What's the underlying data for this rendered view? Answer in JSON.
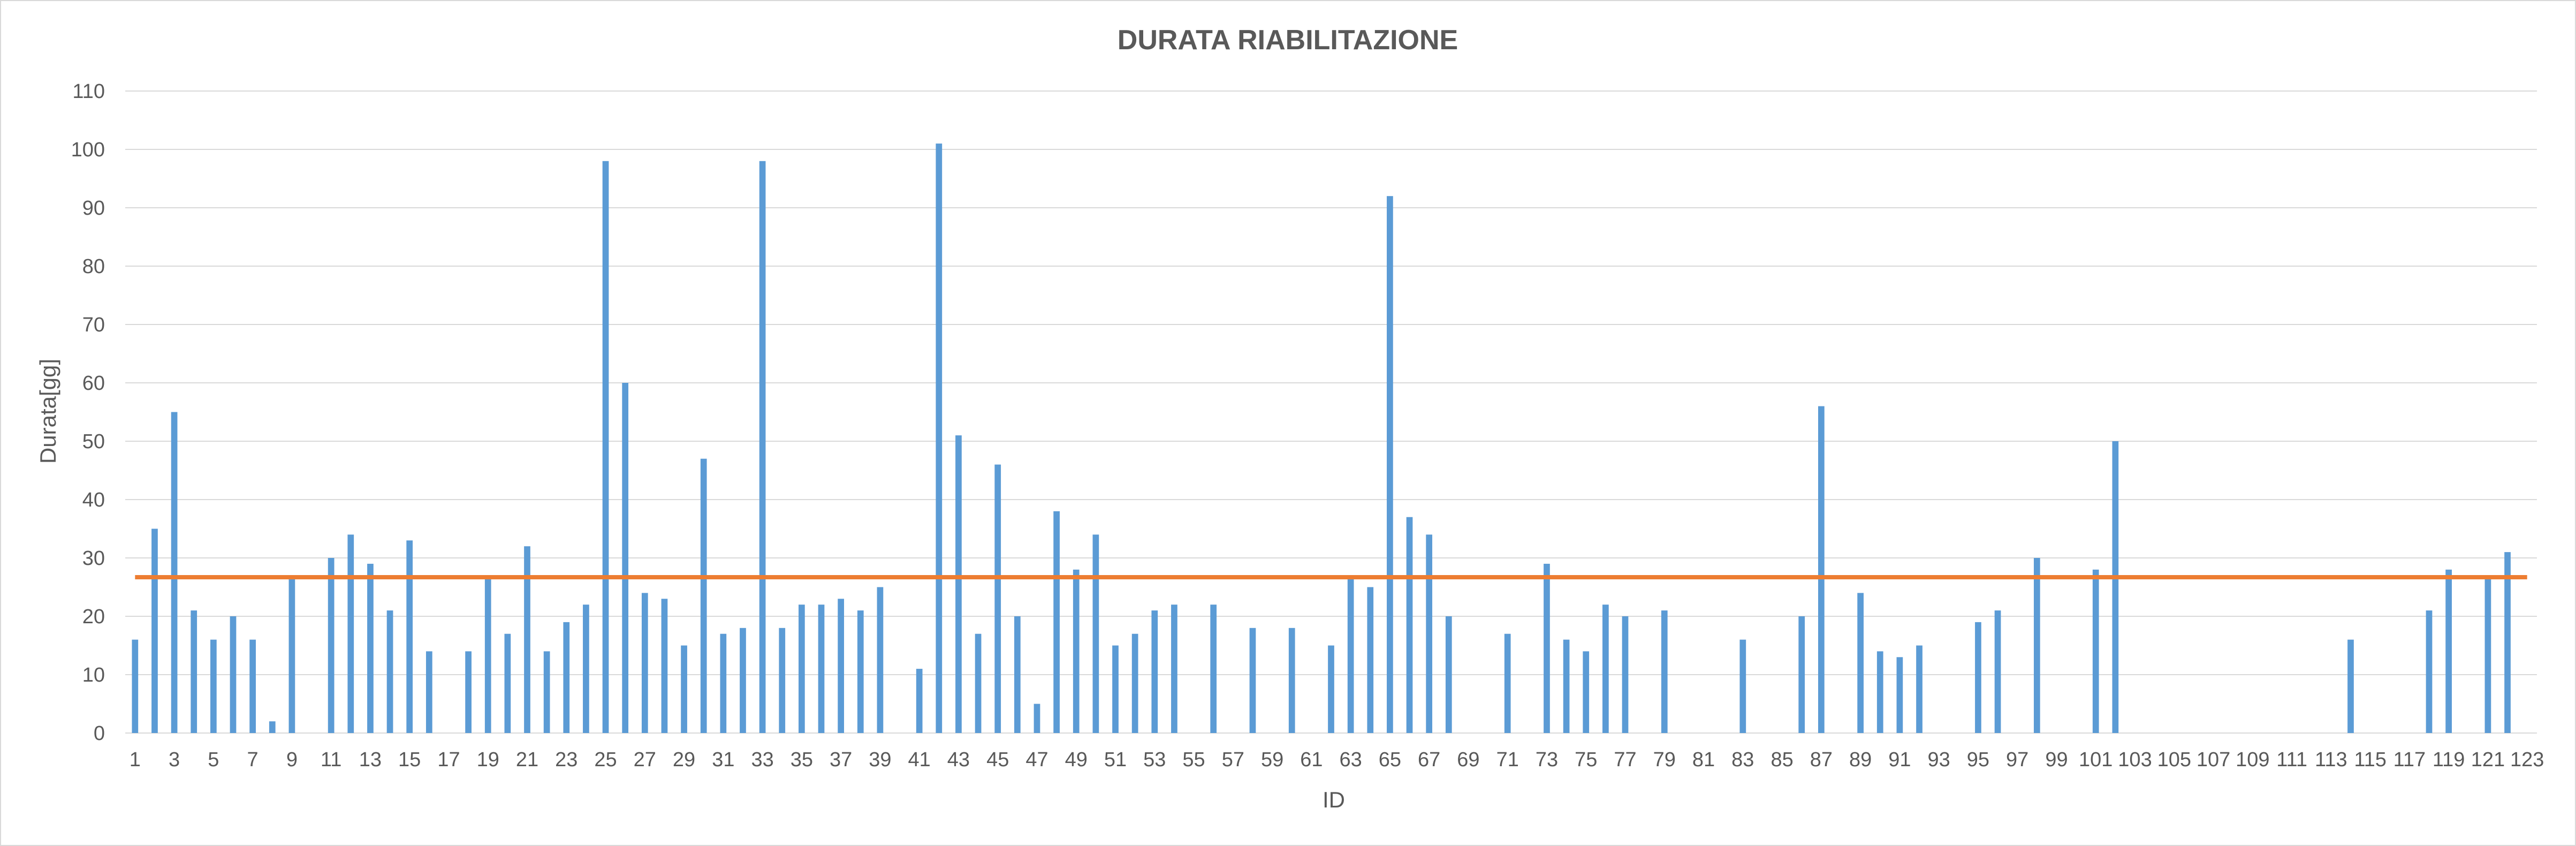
{
  "chart_data": {
    "type": "bar",
    "title": "DURATA RIABILITAZIONE",
    "xlabel": "ID",
    "ylabel": "Durata[gg]",
    "ylim": [
      0,
      110
    ],
    "yticks": [
      0,
      10,
      20,
      30,
      40,
      50,
      60,
      70,
      80,
      90,
      100,
      110
    ],
    "grid": true,
    "legend": "none",
    "bar_color": "#5b9bd5",
    "reference_line": {
      "value": 26.7,
      "color": "#ed7d31"
    },
    "categories": [
      1,
      2,
      3,
      4,
      5,
      6,
      7,
      8,
      9,
      10,
      11,
      12,
      13,
      14,
      15,
      16,
      17,
      18,
      19,
      20,
      21,
      22,
      23,
      24,
      25,
      26,
      27,
      28,
      29,
      30,
      31,
      32,
      33,
      34,
      35,
      36,
      37,
      38,
      39,
      40,
      41,
      42,
      43,
      44,
      45,
      46,
      47,
      48,
      49,
      50,
      51,
      52,
      53,
      54,
      55,
      56,
      57,
      58,
      59,
      60,
      61,
      62,
      63,
      64,
      65,
      66,
      67,
      68,
      69,
      70,
      71,
      72,
      73,
      74,
      75,
      76,
      77,
      78,
      79,
      80,
      81,
      82,
      83,
      84,
      85,
      86,
      87,
      88,
      89,
      90,
      91,
      92,
      93,
      94,
      95,
      96,
      97,
      98,
      99,
      100,
      101,
      102,
      103,
      104,
      105,
      106,
      107,
      108,
      109,
      110,
      111,
      112,
      113,
      114,
      115,
      116,
      117,
      118,
      119,
      120,
      121,
      122,
      123
    ],
    "values": [
      16,
      35,
      55,
      21,
      16,
      20,
      16,
      2,
      27,
      0,
      30,
      34,
      29,
      21,
      33,
      14,
      0,
      14,
      27,
      17,
      32,
      14,
      19,
      22,
      98,
      60,
      24,
      23,
      15,
      47,
      17,
      18,
      98,
      18,
      22,
      22,
      23,
      21,
      25,
      0,
      11,
      101,
      51,
      17,
      46,
      20,
      5,
      38,
      28,
      34,
      15,
      17,
      21,
      22,
      0,
      22,
      0,
      18,
      0,
      18,
      0,
      15,
      27,
      25,
      92,
      37,
      34,
      20,
      0,
      0,
      17,
      0,
      29,
      16,
      14,
      22,
      20,
      0,
      21,
      0,
      0,
      0,
      16,
      0,
      0,
      20,
      56,
      0,
      24,
      14,
      13,
      15,
      0,
      0,
      19,
      21,
      0,
      30,
      0,
      0,
      28,
      50,
      0,
      0,
      0,
      0,
      0,
      0,
      0,
      0,
      0,
      0,
      0,
      16,
      0,
      0,
      0,
      21,
      28,
      0,
      27,
      31,
      0
    ]
  }
}
